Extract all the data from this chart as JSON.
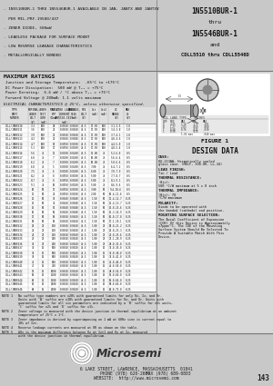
{
  "page_bg": "#d0d0d0",
  "header_bg": "#c8c8c8",
  "white": "#ffffff",
  "black": "#000000",
  "dark_gray": "#222222",
  "mid_gray": "#666666",
  "right_panel_bg": "#d8d8d8",
  "bullet1": "- 1N5510BUR-1 THRU 1N5546BUR-1 AVAILABLE IN JAN, JANTX AND JANTXV",
  "bullet1b": "  PER MIL-PRF-19500/437",
  "bullet2": "- ZENER DIODE, 500mW",
  "bullet3": "- LEADLESS PACKAGE FOR SURFACE MOUNT",
  "bullet4": "- LOW REVERSE LEAKAGE CHARACTERISTICS",
  "bullet5": "- METALLURGICALLY BONDED",
  "title_line1": "1N5510BUR-1",
  "title_line2": "thru",
  "title_line3": "1N5546BUR-1",
  "title_line4": "and",
  "title_line5": "CDLL5510 thru CDLL5546D",
  "max_ratings_title": "MAXIMUM RATINGS",
  "max_rating1": "Junction and Storage Temperature:  -65°C to +175°C",
  "max_rating2": "DC Power Dissipation:  500 mW @ T₀₃ = +75°C",
  "max_rating3": "Power Derating:  6.6 mW / °C above T₀₃ = +75°C",
  "max_rating4": "Forward Voltage @ 200mA: 1.1 volts maximum",
  "elec_char_title": "ELECTRICAL CHARACTERISTICS @ 25°C, unless otherwise specified.",
  "table_rows": [
    [
      "CDLL/JAN5510",
      "3.3",
      "100",
      "28",
      "0.0010",
      "0.0020",
      "76.5",
      "17.50",
      "100",
      "3.1-3.5",
      "1.0"
    ],
    [
      "CDLL/JAN5511",
      "3.6",
      "100",
      "24",
      "0.0010",
      "0.0020",
      "76.5",
      "17.50",
      "100",
      "3.4-3.8",
      "1.0"
    ],
    [
      "CDLL/JAN5512",
      "3.9",
      "100",
      "23",
      "0.0010",
      "0.0020",
      "76.5",
      "17.50",
      "100",
      "3.7-4.1",
      "1.0"
    ],
    [
      "CDLL/JAN5513",
      "4.3",
      "100",
      "22",
      "0.0020",
      "0.0040",
      "76.5",
      "17.50",
      "100",
      "4.0-4.6",
      "1.0"
    ],
    [
      "CDLL/JAN5514",
      "4.7",
      "100",
      "19",
      "0.0050",
      "0.0100",
      "76.5",
      "17.50",
      "100",
      "4.4-5.0",
      "1.0"
    ],
    [
      "CDLL/JAN5515",
      "5.1",
      "100",
      "17",
      "0.0050",
      "0.0100",
      "76.5",
      "17.50",
      "100",
      "4.8-5.4",
      "1.0"
    ],
    [
      "CDLL/JAN5516",
      "5.6",
      "75",
      "11",
      "0.0100",
      "0.0200",
      "76.5",
      "13.00",
      "75",
      "5.2-6.0",
      "0.5"
    ],
    [
      "CDLL/JAN5517",
      "6.0",
      "75",
      "7",
      "0.0100",
      "0.0200",
      "76.5",
      "10.00",
      "75",
      "5.6-6.4",
      "0.5"
    ],
    [
      "CDLL/JAN5518",
      "6.2",
      "75",
      "7",
      "0.0100",
      "0.0200",
      "76.5",
      "10.00",
      "75",
      "5.8-6.6",
      "0.5"
    ],
    [
      "CDLL/JAN5519",
      "6.8",
      "75",
      "5",
      "0.0100",
      "0.0200",
      "76.5",
      "7.00",
      "75",
      "6.4-7.2",
      "0.5"
    ],
    [
      "CDLL/JAN5520",
      "7.5",
      "75",
      "6",
      "0.0100",
      "0.0200",
      "76.5",
      "6.00",
      "75",
      "7.0-7.9",
      "0.5"
    ],
    [
      "CDLL/JAN5521",
      "8.2",
      "75",
      "8",
      "0.0050",
      "0.0100",
      "76.5",
      "5.00",
      "75",
      "7.7-8.7",
      "0.5"
    ],
    [
      "CDLL/JAN5522",
      "8.7",
      "75",
      "8",
      "0.0050",
      "0.0100",
      "76.5",
      "5.00",
      "75",
      "8.1-9.1",
      "0.5"
    ],
    [
      "CDLL/JAN5523",
      "9.1",
      "75",
      "10",
      "0.0050",
      "0.0100",
      "76.5",
      "5.00",
      "75",
      "8.6-9.6",
      "0.5"
    ],
    [
      "CDLL/JAN5524",
      "10",
      "50",
      "17",
      "0.0050",
      "0.0100",
      "76.5",
      "3.00",
      "50",
      "9.4-10.6",
      "0.5"
    ],
    [
      "CDLL/JAN5525",
      "11",
      "50",
      "22",
      "0.0050",
      "0.0100",
      "76.5",
      "2.00",
      "50",
      "10.4-11.6",
      "0.5"
    ],
    [
      "CDLL/JAN5526",
      "12",
      "50",
      "30",
      "0.0020",
      "0.0040",
      "76.5",
      "1.50",
      "50",
      "11.4-12.7",
      "0.25"
    ],
    [
      "CDLL/JAN5527",
      "13",
      "50",
      "33",
      "0.0020",
      "0.0040",
      "76.5",
      "1.50",
      "50",
      "12.4-13.7",
      "0.25"
    ],
    [
      "CDLL/JAN5528",
      "15",
      "50",
      "51",
      "0.0020",
      "0.0040",
      "76.5",
      "1.50",
      "50",
      "13.8-15.6",
      "0.25"
    ],
    [
      "CDLL/JAN5529",
      "16",
      "50",
      "56",
      "0.0020",
      "0.0040",
      "76.5",
      "1.50",
      "50",
      "15.3-16.9",
      "0.25"
    ],
    [
      "CDLL/JAN5530",
      "17",
      "50",
      "56",
      "0.0010",
      "0.0020",
      "76.5",
      "1.50",
      "50",
      "16.0-17.8",
      "0.25"
    ],
    [
      "CDLL/JAN5531",
      "18",
      "50",
      "56",
      "0.0010",
      "0.0020",
      "76.5",
      "1.50",
      "50",
      "17.1-19.1",
      "0.25"
    ],
    [
      "CDLL/JAN5532",
      "20",
      "25",
      "150",
      "0.0010",
      "0.0020",
      "76.5",
      "1.00",
      "25",
      "18.8-21.2",
      "0.25"
    ],
    [
      "CDLL/JAN5533",
      "22",
      "25",
      "150",
      "0.0010",
      "0.0020",
      "76.5",
      "1.00",
      "25",
      "20.8-23.3",
      "0.25"
    ],
    [
      "CDLL/JAN5534",
      "24",
      "25",
      "150",
      "0.0010",
      "0.0020",
      "76.5",
      "1.00",
      "25",
      "22.8-25.6",
      "0.25"
    ],
    [
      "CDLL/JAN5535",
      "27",
      "25",
      "200",
      "0.0010",
      "0.0020",
      "76.5",
      "1.00",
      "25",
      "25.1-28.9",
      "0.25"
    ],
    [
      "CDLL/JAN5536",
      "30",
      "25",
      "200",
      "0.0010",
      "0.0020",
      "76.5",
      "1.00",
      "25",
      "28.0-32.0",
      "0.25"
    ],
    [
      "CDLL/JAN5537",
      "33",
      "15",
      "500",
      "0.0010",
      "0.0020",
      "76.5",
      "1.00",
      "15",
      "31.0-35.0",
      "0.25"
    ],
    [
      "CDLL/JAN5538",
      "36",
      "15",
      "500",
      "0.0010",
      "0.0020",
      "76.5",
      "1.00",
      "15",
      "34.0-38.0",
      "0.25"
    ],
    [
      "CDLL/JAN5539",
      "39",
      "15",
      "600",
      "0.0010",
      "0.0020",
      "76.5",
      "1.00",
      "15",
      "37.0-41.0",
      "0.25"
    ],
    [
      "CDLL/JAN5540",
      "43",
      "15",
      "600",
      "0.0010",
      "0.0020",
      "76.5",
      "1.00",
      "15",
      "40.0-46.0",
      "0.25"
    ],
    [
      "CDLL/JAN5541",
      "47",
      "15",
      "700",
      "0.0010",
      "0.0020",
      "76.5",
      "1.00",
      "15",
      "44.0-50.0",
      "0.25"
    ],
    [
      "CDLL/JAN5542",
      "51",
      "15",
      "1000",
      "0.0010",
      "0.0020",
      "76.5",
      "1.00",
      "15",
      "48.0-54.0",
      "0.25"
    ],
    [
      "CDLL/JAN5543",
      "56",
      "15",
      "1500",
      "0.0010",
      "0.0020",
      "76.5",
      "1.00",
      "15",
      "52.0-60.0",
      "0.25"
    ],
    [
      "CDLL/JAN5544",
      "60",
      "15",
      "1500",
      "0.0010",
      "0.0020",
      "76.5",
      "1.00",
      "15",
      "56.0-64.0",
      "0.25"
    ],
    [
      "CDLL/JAN5545",
      "62",
      "15",
      "2000",
      "0.0010",
      "0.0020",
      "76.5",
      "1.00",
      "15",
      "58.0-66.0",
      "0.25"
    ],
    [
      "CDLL/JAN5546",
      "68",
      "15",
      "2000",
      "0.0010",
      "0.0020",
      "76.5",
      "1.00",
      "15",
      "64.0-72.0",
      "0.25"
    ]
  ],
  "note1": "NOTE 1   No suffix type numbers are ±20% with guaranteed limits for only Vz, Iz, and Vr.\n         Units with 'A' suffix are ±10% with guaranteed limits for Vz, and Vr. Units with\n         guaranteed limits for all six parameters are indicated by a 'B' suffix for ±5% units,\n         'C' suffix for ±2% and 'D' suffix for ±1%.",
  "note2": "NOTE 2   Zener voltage is measured with the device junction in thermal equilibrium at an ambient\n         temperature of 25°C ± 1°C.",
  "note3": "NOTE 3   Zener impedance is derived by superimposing on 1 mA at 60Hz sine is current equal to\n         10% of Izt.",
  "note4": "NOTE 4   Reverse leakage currents are measured at VR as shown on the table.",
  "note5": "NOTE 5   ΔVz is the maximum difference between Vz at Izt1 and Vz at Iz, measured\n         with the device junction in thermal equilibrium.",
  "figure_label": "FIGURE 1",
  "design_data_title": "DESIGN DATA",
  "footer_address": "6 LAKE STREET, LAWRENCE, MASSACHUSETTS  01841",
  "footer_phone": "PHONE (978) 620-2600",
  "footer_fax": "FAX (978) 689-0803",
  "footer_website": "WEBSITE:  http://www.microsemi.com",
  "footer_page": "143"
}
